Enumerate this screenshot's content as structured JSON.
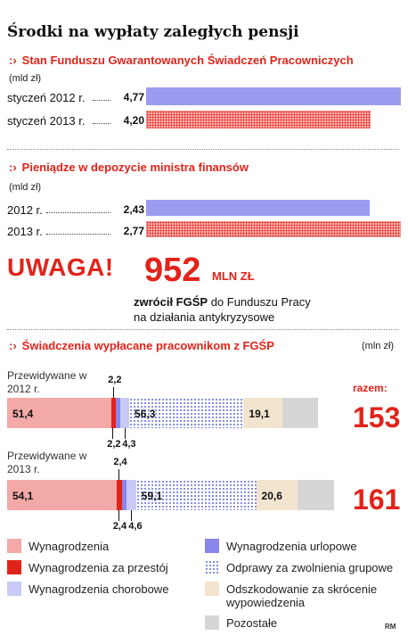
{
  "title": "Środki na wypłaty zaległych pensji",
  "section1": {
    "heading": "Stan Funduszu Gwarantowanych Świadczeń Pracowniczych",
    "unit": "(mld zł)"
  },
  "section2": {
    "heading": "Pieniądze w depozycie ministra finansów",
    "unit": "(mld zł)"
  },
  "callout": {
    "label": "UWAGA!",
    "number": "952",
    "number_unit": "MLN ZŁ",
    "text_bold": "zwrócił FGŚP",
    "text_rest": " do Funduszu Pracy",
    "text_line2": "na działania antykryzysowe"
  },
  "section3": {
    "heading": "Świadczenia wypłacane pracownikom z FGŚP",
    "unit": "(mln zł)",
    "razem_label": "razem:"
  },
  "credit": "RM",
  "colors": {
    "accent_red": "#e2231a",
    "blue_bar": "#9b9cf0",
    "wynagrodzenia": "#f4a9a9",
    "przestoj": "#e2231a",
    "urlopowe": "#8a86ea",
    "chorobowe": "#c9c9f6",
    "odprawy": "#6e7be0",
    "odszkodowanie": "#f3e4cf",
    "pozostale": "#d6d6d6"
  },
  "chart_data": [
    {
      "type": "bar",
      "orientation": "horizontal",
      "title": "Stan Funduszu Gwarantowanych Świadczeń Pracowniczych",
      "unit": "(mld zł)",
      "categories": [
        "styczeń 2012 r.",
        "styczeń 2013 r."
      ],
      "values": [
        4.77,
        4.2
      ],
      "value_labels": [
        "4,77",
        "4,20"
      ],
      "xlim": [
        0,
        4.77
      ]
    },
    {
      "type": "bar",
      "orientation": "horizontal",
      "title": "Pieniądze w depozycie ministra finansów",
      "unit": "(mld zł)",
      "categories": [
        "2012 r.",
        "2013 r."
      ],
      "values": [
        2.43,
        2.77
      ],
      "value_labels": [
        "2,43",
        "2,77"
      ],
      "xlim": [
        0,
        2.77
      ]
    },
    {
      "type": "bar",
      "orientation": "horizontal",
      "stacked": true,
      "title": "Świadczenia wypłacane pracownikom z FGŚP",
      "unit": "(mln zł)",
      "categories": [
        "Przewidywane w 2012 r.",
        "Przewidywane w 2013 r."
      ],
      "totals": [
        153,
        161
      ],
      "series": [
        {
          "name": "Wynagrodzenia",
          "values": [
            51.4,
            54.1
          ],
          "labels": [
            "51,4",
            "54,1"
          ]
        },
        {
          "name": "Wynagrodzenia  za przestój",
          "values": [
            2.2,
            2.4
          ],
          "labels": [
            "2,2",
            "2,4"
          ]
        },
        {
          "name": "Wynagrodzenia urlopowe",
          "values": [
            2.2,
            2.4
          ],
          "labels": [
            "2,2",
            "2,4"
          ]
        },
        {
          "name": "Wynagrodzenia chorobowe",
          "values": [
            4.3,
            4.6
          ],
          "labels": [
            "4,3",
            "4,6"
          ]
        },
        {
          "name": "Odprawy za zwolnienia grupowe",
          "values": [
            56.3,
            59.1
          ],
          "labels": [
            "56,3",
            "59,1"
          ]
        },
        {
          "name": "Odszkodowanie za skrócenie wypowiedzenia",
          "values": [
            19.1,
            20.6
          ],
          "labels": [
            "19,1",
            "20,6"
          ]
        },
        {
          "name": "Pozostałe",
          "values": [
            17.5,
            17.8
          ],
          "labels": [
            "",
            ""
          ]
        }
      ],
      "legend": [
        {
          "name": "Wynagrodzenia",
          "color_key": "wynagrodzenia",
          "icon": "solid-square"
        },
        {
          "name": "Wynagrodzenia urlopowe",
          "color_key": "urlopowe",
          "icon": "solid-square"
        },
        {
          "name": "Wynagrodzenia  za przestój",
          "color_key": "przestoj",
          "icon": "solid-square"
        },
        {
          "name": "Odprawy za zwolnienia grupowe",
          "color_key": "odprawy",
          "icon": "dotted-square"
        },
        {
          "name": "Wynagrodzenia chorobowe",
          "color_key": "chorobowe",
          "icon": "solid-square"
        },
        {
          "name": "Odszkodowanie za skrócenie wypowiedzenia",
          "color_key": "odszkodowanie",
          "icon": "solid-square"
        },
        {
          "name": "Pozostałe",
          "color_key": "pozostale",
          "icon": "solid-square"
        }
      ],
      "legend_position": "bottom"
    }
  ]
}
